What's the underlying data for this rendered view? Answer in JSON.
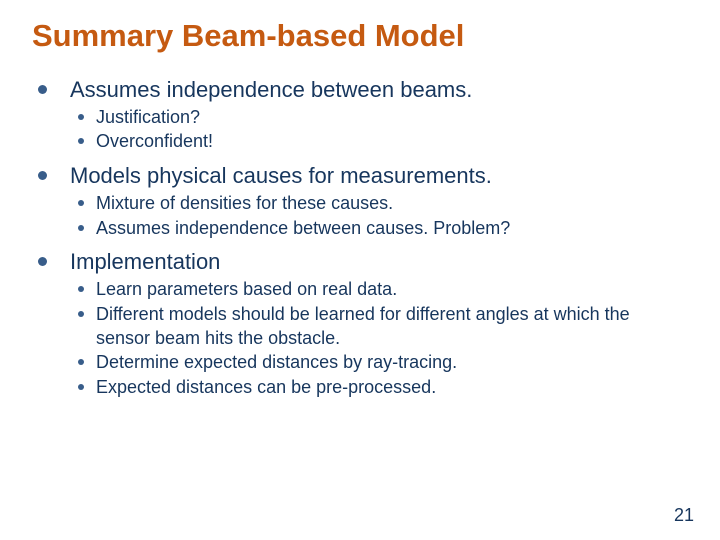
{
  "colors": {
    "title": "#c55a11",
    "body": "#17365d",
    "bullet1": "#385d8a",
    "bullet2": "#385d8a",
    "pagenum": "#17365d"
  },
  "title": "Summary Beam-based Model",
  "bullets": [
    {
      "text": "Assumes independence between beams.",
      "sub": [
        "Justification?",
        "Overconfident!"
      ]
    },
    {
      "text": "Models physical causes for measurements.",
      "sub": [
        "Mixture of densities for these causes.",
        "Assumes independence between causes. Problem?"
      ]
    },
    {
      "text": "Implementation",
      "sub": [
        "Learn parameters based on real data.",
        "Different models should be learned for different angles at which the sensor beam hits the obstacle.",
        "Determine expected distances by ray-tracing.",
        "Expected distances can be pre-processed."
      ]
    }
  ],
  "page_number": "21"
}
